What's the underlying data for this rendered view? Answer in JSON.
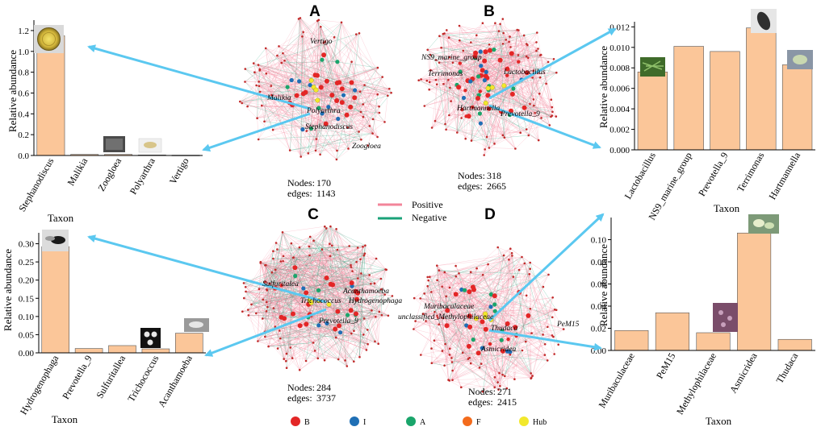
{
  "colors": {
    "bar_fill": "#FBC699",
    "bar_stroke": "#555555",
    "arrow": "#5BC8F0",
    "positive": "#F3859A",
    "negative": "#1AA278",
    "B": "#E32626",
    "I": "#1F6FB5",
    "A": "#1AA56B",
    "F": "#F36B1C",
    "Hub": "#F2E82C"
  },
  "legend": {
    "positive": "Positive",
    "negative": "Negative",
    "types": [
      "B",
      "I",
      "A",
      "F",
      "Hub"
    ]
  },
  "chart_data": [
    {
      "type": "bar",
      "panel": "A",
      "categories": [
        "Stephanodiscus",
        "Malikia",
        "Zoogloea",
        "Polyarthra",
        "Vertigo"
      ],
      "values": [
        1.15,
        0.01,
        0.01,
        0.005,
        0.003
      ],
      "ylim": [
        0,
        1.3
      ],
      "yticks": [
        0.0,
        0.2,
        0.4,
        0.6,
        0.8,
        1.0,
        1.2
      ],
      "ytick_labels": [
        "0.0",
        "0.2",
        "0.4",
        "0.6",
        "0.8",
        "1.0",
        "1.2"
      ],
      "xlabel": "Taxon",
      "ylabel": "Relative abundance"
    },
    {
      "type": "bar",
      "panel": "B",
      "categories": [
        "Lactobacillus",
        "NS9_marine_group",
        "Prevotella_9",
        "Terrimonas",
        "Hartmannella"
      ],
      "values": [
        0.0076,
        0.0101,
        0.0096,
        0.0119,
        0.0083
      ],
      "ylim": [
        0,
        0.0125
      ],
      "yticks": [
        0.0,
        0.002,
        0.004,
        0.006,
        0.008,
        0.01,
        0.012
      ],
      "ytick_labels": [
        "0.000",
        "0.002",
        "0.004",
        "0.006",
        "0.008",
        "0.010",
        "0.012"
      ],
      "xlabel": "Taxon",
      "ylabel": "Relative abundance"
    },
    {
      "type": "bar",
      "panel": "C",
      "categories": [
        "Hydrogenophaga",
        "Prevotella_9",
        "Sulfuritallea",
        "Trichococcus",
        "Acanthamoeba"
      ],
      "values": [
        0.292,
        0.012,
        0.02,
        0.011,
        0.054
      ],
      "ylim": [
        0,
        0.33
      ],
      "yticks": [
        0.0,
        0.05,
        0.1,
        0.15,
        0.2,
        0.25,
        0.3
      ],
      "ytick_labels": [
        "0.00",
        "0.05",
        "0.10",
        "0.15",
        "0.20",
        "0.25",
        "0.30"
      ],
      "xlabel": "Taxon",
      "ylabel": "Relative abundance"
    },
    {
      "type": "bar",
      "panel": "D",
      "categories": [
        "Muribaculaceae",
        "PeM15",
        "Methylophilaceae",
        "Asmicridea",
        "Thudaca"
      ],
      "values": [
        0.018,
        0.034,
        0.016,
        0.106,
        0.01
      ],
      "ylim": [
        0,
        0.12
      ],
      "yticks": [
        0.0,
        0.02,
        0.04,
        0.06,
        0.08,
        0.1
      ],
      "ytick_labels": [
        "0.00",
        "0.02",
        "0.04",
        "0.06",
        "0.08",
        "0.10"
      ],
      "xlabel": "Taxon",
      "ylabel": "Relative abundance"
    }
  ],
  "networks": [
    {
      "panel": "A",
      "nodes_label": "Nodes:",
      "nodes": "170",
      "edges_label": "edges:",
      "edges": "1143",
      "taxa": [
        "Vertigo",
        "Malikia",
        "Polyarthra",
        "Stephanodiscus",
        "Zoogloea"
      ]
    },
    {
      "panel": "B",
      "nodes_label": "Nodes:",
      "nodes": "318",
      "edges_label": "edges:",
      "edges": "2665",
      "taxa": [
        "NS9_marine_group",
        "Terrimonas",
        "Lactobacillus",
        "Hartmannella",
        "Prevotella_9"
      ]
    },
    {
      "panel": "C",
      "nodes_label": "Nodes:",
      "nodes": "284",
      "edges_label": "edges:",
      "edges": "3737",
      "taxa": [
        "Sulfuritalea",
        "Acanthamoeba",
        "Trichococcus",
        "Hydrogenophaga",
        "Prevotella_9"
      ]
    },
    {
      "panel": "D",
      "nodes_label": "Nodes:",
      "nodes": "271",
      "edges_label": "edges:",
      "edges": "2415",
      "taxa": [
        "Muribaculaceae",
        "unclassified_Methylophilaceae",
        "Thudaca",
        "PeM15",
        "Asmicridea"
      ]
    }
  ]
}
